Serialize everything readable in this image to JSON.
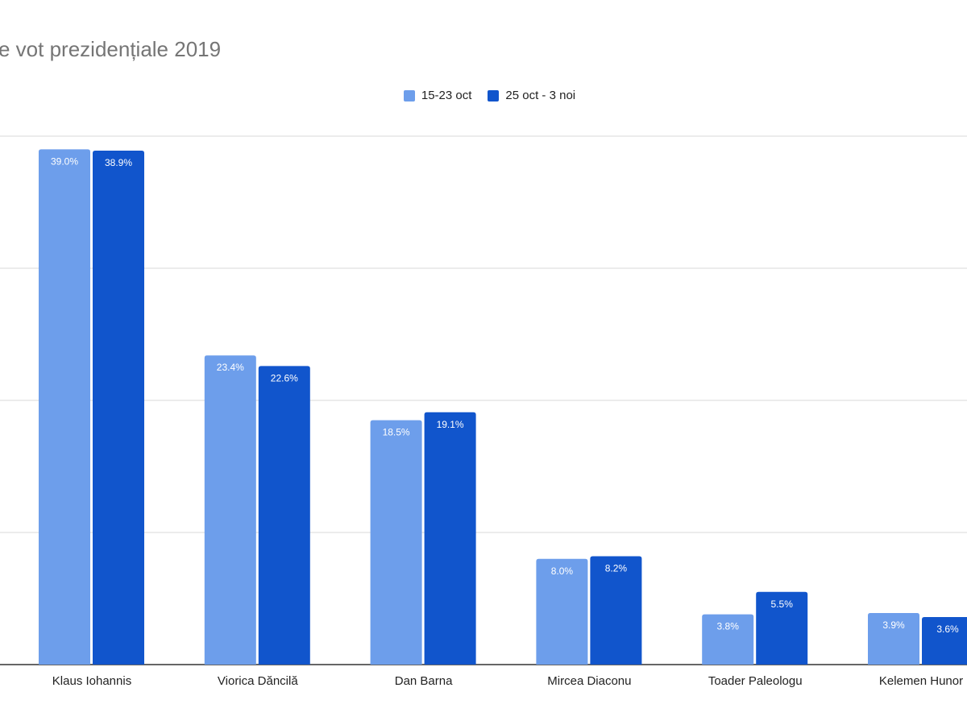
{
  "chart_data": {
    "type": "bar",
    "title": "e vot prezidențiale 2019",
    "categories": [
      "Klaus Iohannis",
      "Viorica Dăncilă",
      "Dan Barna",
      "Mircea Diaconu",
      "Toader Paleologu",
      "Kelemen Hunor"
    ],
    "series": [
      {
        "name": "15-23 oct",
        "color": "#6d9eeb",
        "values": [
          39.0,
          23.4,
          18.5,
          8.0,
          3.8,
          3.9
        ],
        "labels": [
          "39.0%",
          "23.4%",
          "18.5%",
          "8.0%",
          "3.8%",
          "3.9%"
        ]
      },
      {
        "name": "25 oct - 3 noi",
        "color": "#1155cc",
        "values": [
          38.9,
          22.6,
          19.1,
          8.2,
          5.5,
          3.6
        ],
        "labels": [
          "38.9%",
          "22.6%",
          "19.1%",
          "8.2%",
          "5.5%",
          "3.6%"
        ]
      }
    ],
    "ylim": [
      0,
      40
    ],
    "gridlines": [
      0,
      10,
      20,
      30,
      40
    ],
    "legend": "top-center",
    "xlabel": "",
    "ylabel": ""
  }
}
